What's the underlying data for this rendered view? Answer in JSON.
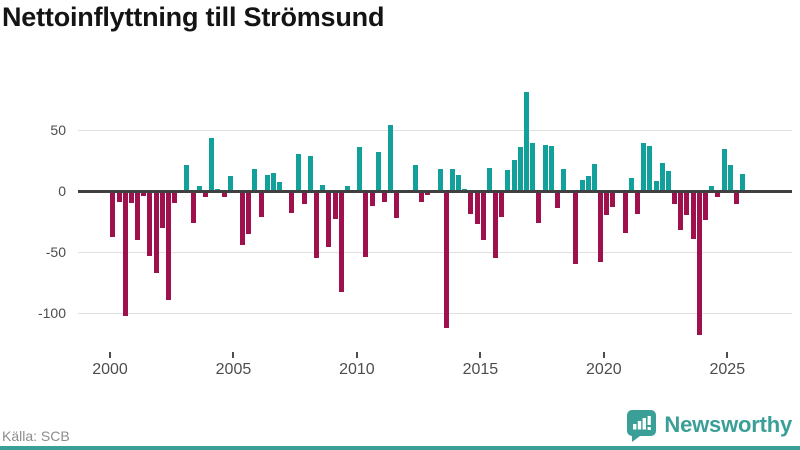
{
  "title": "Nettoinflyttning till Strömsund",
  "source": {
    "label": "Källa: SCB"
  },
  "branding": {
    "name": "Newsworthy",
    "color": "#3a9f97"
  },
  "icons": {
    "logo": "newsworthy-speech-bubble-bar-chart-icon"
  },
  "colors": {
    "positive_bar": "#12a19a",
    "negative_bar": "#9e114d",
    "zero_line": "#404040",
    "gridline": "#e0e0e0",
    "axis_text": "#4d4d4d",
    "title_text": "#141414",
    "source_text": "#8c8c8c",
    "accent": "#3a9f97"
  },
  "chart_data": {
    "type": "bar",
    "title": "Nettoinflyttning till Strömsund",
    "xlabel": "",
    "ylabel": "",
    "grid": true,
    "legend_position": "none",
    "x_ticks": [
      "2000",
      "2005",
      "2010",
      "2015",
      "2020",
      "2025"
    ],
    "y_ticks": [
      50,
      0,
      -50,
      -100
    ],
    "ylim": [
      -125,
      95
    ],
    "categories": [
      "2000 Q1",
      "2000 Q2",
      "2000 Q3",
      "2000 Q4",
      "2001 Q1",
      "2001 Q2",
      "2001 Q3",
      "2001 Q4",
      "2002 Q1",
      "2002 Q2",
      "2002 Q3",
      "2002 Q4",
      "2003 Q1",
      "2003 Q2",
      "2003 Q3",
      "2003 Q4",
      "2004 Q1",
      "2004 Q2",
      "2004 Q3",
      "2004 Q4",
      "2005 Q1",
      "2005 Q2",
      "2005 Q3",
      "2005 Q4",
      "2006 Q1",
      "2006 Q2",
      "2006 Q3",
      "2006 Q4",
      "2007 Q1",
      "2007 Q2",
      "2007 Q3",
      "2007 Q4",
      "2008 Q1",
      "2008 Q2",
      "2008 Q3",
      "2008 Q4",
      "2009 Q1",
      "2009 Q2",
      "2009 Q3",
      "2009 Q4",
      "2010 Q1",
      "2010 Q2",
      "2010 Q3",
      "2010 Q4",
      "2011 Q1",
      "2011 Q2",
      "2011 Q3",
      "2011 Q4",
      "2012 Q1",
      "2012 Q2",
      "2012 Q3",
      "2012 Q4",
      "2013 Q1",
      "2013 Q2",
      "2013 Q3",
      "2013 Q4",
      "2014 Q1",
      "2014 Q2",
      "2014 Q3",
      "2014 Q4",
      "2015 Q1",
      "2015 Q2",
      "2015 Q3",
      "2015 Q4",
      "2016 Q1",
      "2016 Q2",
      "2016 Q3",
      "2016 Q4",
      "2017 Q1",
      "2017 Q2",
      "2017 Q3",
      "2017 Q4",
      "2018 Q1",
      "2018 Q2",
      "2018 Q3",
      "2018 Q4",
      "2019 Q1",
      "2019 Q2",
      "2019 Q3",
      "2019 Q4",
      "2020 Q1",
      "2020 Q2",
      "2020 Q3",
      "2020 Q4",
      "2021 Q1",
      "2021 Q2",
      "2021 Q3",
      "2021 Q4",
      "2022 Q1",
      "2022 Q2",
      "2022 Q3",
      "2022 Q4",
      "2023 Q1",
      "2023 Q2",
      "2023 Q3",
      "2023 Q4",
      "2024 Q1",
      "2024 Q2",
      "2024 Q3",
      "2024 Q4",
      "2025 Q1",
      "2025 Q2",
      "2025 Q3"
    ],
    "series": [
      {
        "name": "Nettoinflyttning",
        "values": [
          -38,
          -9,
          -102,
          -10,
          -40,
          -4,
          -53,
          -67,
          -30,
          -89,
          -10,
          0,
          21,
          -26,
          4,
          -5,
          43,
          2,
          -5,
          12,
          0,
          -44,
          -35,
          18,
          -21,
          13,
          15,
          7,
          0,
          -18,
          30,
          -11,
          29,
          -55,
          5,
          -46,
          -23,
          -83,
          4,
          0,
          36,
          -54,
          -12,
          32,
          -9,
          54,
          -22,
          0,
          0,
          21,
          -9,
          -3,
          0,
          18,
          -112,
          18,
          13,
          2,
          -19,
          -27,
          -40,
          19,
          -55,
          -21,
          17,
          25,
          36,
          81,
          39,
          -26,
          38,
          37,
          -14,
          18,
          0,
          -60,
          9,
          12,
          22,
          -58,
          -20,
          -13,
          0,
          -34,
          11,
          -19,
          39,
          37,
          8,
          23,
          16,
          -11,
          -32,
          -20,
          -39,
          -118,
          -24,
          4,
          -5,
          34,
          21,
          -11,
          14
        ]
      }
    ]
  }
}
